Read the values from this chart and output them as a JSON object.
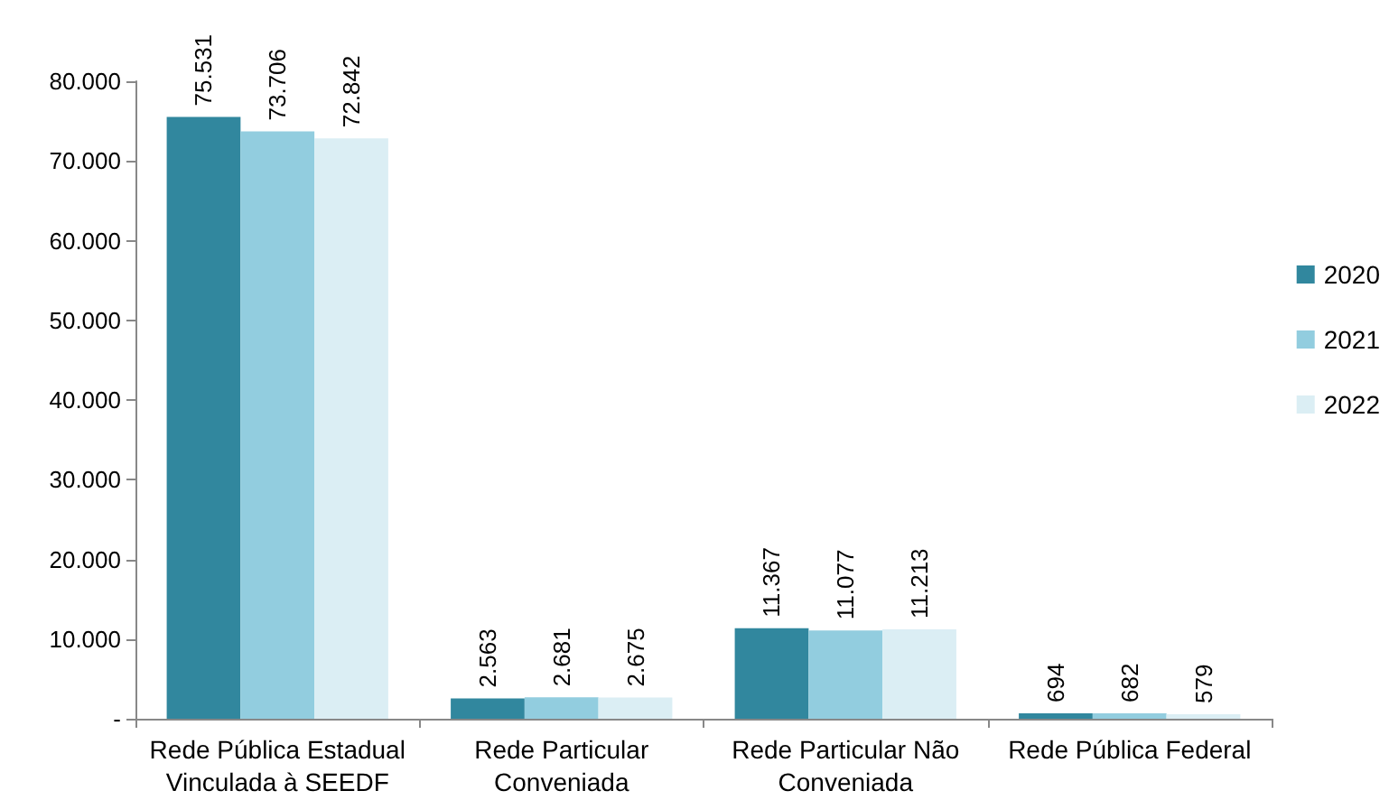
{
  "chart_data": {
    "type": "bar",
    "categories": [
      "Rede Pública Estadual\nVinculada à SEEDF",
      "Rede Particular\nConveniada",
      "Rede Particular Não\nConveniada",
      "Rede Pública Federal"
    ],
    "series": [
      {
        "name": "2020",
        "color": "#31879e",
        "values": [
          75531,
          2563,
          11367,
          694
        ],
        "value_labels": [
          "75.531",
          "2.563",
          "11.367",
          "694"
        ]
      },
      {
        "name": "2021",
        "color": "#92cddf",
        "values": [
          73706,
          2681,
          11077,
          682
        ],
        "value_labels": [
          "73.706",
          "2.681",
          "11.077",
          "682"
        ]
      },
      {
        "name": "2022",
        "color": "#dbeef4",
        "values": [
          72842,
          2675,
          11213,
          579
        ],
        "value_labels": [
          "72.842",
          "2.675",
          "11.213",
          "579"
        ]
      }
    ],
    "ylim": [
      0,
      80000
    ],
    "yticks": [
      {
        "value": 0,
        "label": "-"
      },
      {
        "value": 10000,
        "label": "10.000"
      },
      {
        "value": 20000,
        "label": "20.000"
      },
      {
        "value": 30000,
        "label": "30.000"
      },
      {
        "value": 40000,
        "label": "40.000"
      },
      {
        "value": 50000,
        "label": "50.000"
      },
      {
        "value": 60000,
        "label": "60.000"
      },
      {
        "value": 70000,
        "label": "70.000"
      },
      {
        "value": 80000,
        "label": "80.000"
      }
    ],
    "grid": false,
    "legend": "right"
  }
}
